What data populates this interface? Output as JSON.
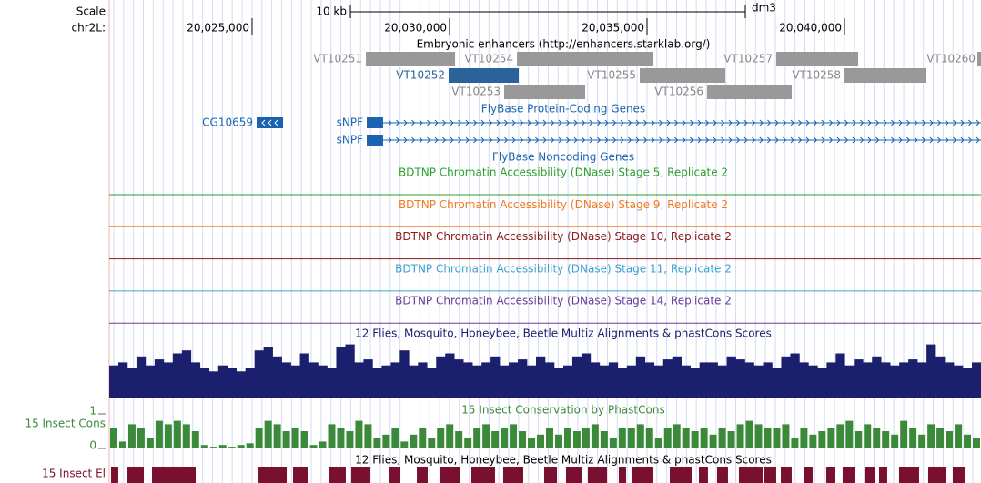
{
  "scale": {
    "label": "Scale",
    "bar_label": "10 kb",
    "bar_length": 10000,
    "assembly": "dm3"
  },
  "position": {
    "chrom_label": "chr2L:",
    "range": [
      20021383,
      20043456
    ],
    "ticks": [
      {
        "value": 20025000,
        "label": "20,025,000"
      },
      {
        "value": 20030000,
        "label": "20,030,000"
      },
      {
        "value": 20035000,
        "label": "20,035,000"
      },
      {
        "value": 20040000,
        "label": "20,040,000"
      }
    ]
  },
  "enhancers": {
    "title": "Embryonic enhancers (http://enhancers.starklab.org/)",
    "items": [
      {
        "name": "VT10251",
        "start": 20027881,
        "end": 20030139,
        "row": 1,
        "color": "#999999"
      },
      {
        "name": "VT10254",
        "start": 20031706,
        "end": 20035162,
        "row": 1,
        "color": "#999999"
      },
      {
        "name": "VT10257",
        "start": 20038272,
        "end": 20040346,
        "row": 1,
        "color": "#999999"
      },
      {
        "name": "VT10260",
        "start": 20043365,
        "end": 20043456,
        "row": 1,
        "color": "#999999"
      },
      {
        "name": "VT10252",
        "start": 20029977,
        "end": 20031752,
        "row": 2,
        "color": "#2a6299"
      },
      {
        "name": "VT10255",
        "start": 20034816,
        "end": 20036982,
        "row": 2,
        "color": "#999999"
      },
      {
        "name": "VT10258",
        "start": 20040001,
        "end": 20042074,
        "row": 2,
        "color": "#999999"
      },
      {
        "name": "VT10253",
        "start": 20031383,
        "end": 20033434,
        "row": 3,
        "color": "#999999"
      },
      {
        "name": "VT10256",
        "start": 20036521,
        "end": 20038664,
        "row": 3,
        "color": "#999999"
      }
    ]
  },
  "genes": {
    "title": "FlyBase Protein-Coding Genes",
    "color": "#1a63b0",
    "items": [
      {
        "name": "CG10659",
        "start": 20025116,
        "end": 20025784,
        "thick_end": 20025784,
        "row": 1
      },
      {
        "name": "sNPF",
        "start": 20027904,
        "end": 20043456,
        "thick_end": 20028317,
        "row": 1
      },
      {
        "name": "sNPF",
        "start": 20027904,
        "end": 20043456,
        "thick_end": 20028317,
        "row": 2
      }
    ]
  },
  "noncoding": {
    "title": "FlyBase Noncoding Genes"
  },
  "dnase": [
    {
      "title": "BDTNP Chromatin Accessibility (DNase) Stage 5, Replicate 2",
      "color": "#2ca02c"
    },
    {
      "title": "BDTNP Chromatin Accessibility (DNase) Stage 9, Replicate 2",
      "color": "#f07a20"
    },
    {
      "title": "BDTNP Chromatin Accessibility (DNase) Stage 10, Replicate 2",
      "color": "#8b1a1a"
    },
    {
      "title": "BDTNP Chromatin Accessibility (DNase) Stage 11, Replicate 2",
      "color": "#3ca0d0"
    },
    {
      "title": "BDTNP Chromatin Accessibility (DNase) Stage 14, Replicate 2",
      "color": "#6a3a9a"
    }
  ],
  "multiz": {
    "title": "12 Flies, Mosquito, Honeybee, Beetle Multiz Alignments & phastCons Scores",
    "color": "#1a1f6e",
    "values": [
      0.55,
      0.6,
      0.5,
      0.7,
      0.55,
      0.65,
      0.6,
      0.75,
      0.8,
      0.6,
      0.5,
      0.45,
      0.55,
      0.5,
      0.45,
      0.5,
      0.8,
      0.85,
      0.7,
      0.6,
      0.55,
      0.75,
      0.6,
      0.55,
      0.5,
      0.85,
      0.9,
      0.6,
      0.65,
      0.5,
      0.55,
      0.6,
      0.8,
      0.55,
      0.6,
      0.5,
      0.7,
      0.75,
      0.65,
      0.6,
      0.55,
      0.6,
      0.7,
      0.55,
      0.6,
      0.65,
      0.55,
      0.7,
      0.6,
      0.5,
      0.55,
      0.7,
      0.75,
      0.6,
      0.55,
      0.6,
      0.5,
      0.55,
      0.7,
      0.6,
      0.55,
      0.65,
      0.7,
      0.55,
      0.5,
      0.6,
      0.6,
      0.55,
      0.7,
      0.65,
      0.6,
      0.55,
      0.6,
      0.5,
      0.7,
      0.75,
      0.6,
      0.55,
      0.5,
      0.6,
      0.75,
      0.55,
      0.65,
      0.6,
      0.7,
      0.6,
      0.55,
      0.6,
      0.65,
      0.6,
      0.9,
      0.7,
      0.6,
      0.55,
      0.5,
      0.6
    ]
  },
  "phastcons": {
    "title": "15 Insect Conservation by PhastCons",
    "side_label": "15 Insect Cons",
    "color": "#3a8a3a",
    "ylim": [
      0,
      1
    ],
    "yticks": [
      0,
      1
    ],
    "values": [
      0.6,
      0.2,
      0.7,
      0.6,
      0.3,
      0.8,
      0.7,
      0.8,
      0.7,
      0.5,
      0.1,
      0.05,
      0.1,
      0.05,
      0.1,
      0.15,
      0.6,
      0.8,
      0.7,
      0.5,
      0.6,
      0.5,
      0.1,
      0.2,
      0.7,
      0.6,
      0.5,
      0.8,
      0.7,
      0.3,
      0.4,
      0.6,
      0.2,
      0.4,
      0.6,
      0.3,
      0.6,
      0.7,
      0.5,
      0.3,
      0.6,
      0.7,
      0.5,
      0.6,
      0.7,
      0.5,
      0.3,
      0.4,
      0.6,
      0.4,
      0.6,
      0.5,
      0.6,
      0.7,
      0.5,
      0.3,
      0.6,
      0.6,
      0.7,
      0.6,
      0.3,
      0.6,
      0.7,
      0.6,
      0.5,
      0.6,
      0.4,
      0.6,
      0.5,
      0.7,
      0.8,
      0.7,
      0.6,
      0.6,
      0.7,
      0.3,
      0.6,
      0.4,
      0.5,
      0.6,
      0.7,
      0.8,
      0.5,
      0.7,
      0.6,
      0.5,
      0.4,
      0.8,
      0.6,
      0.4,
      0.7,
      0.6,
      0.5,
      0.7,
      0.4,
      0.3
    ]
  },
  "elements": {
    "title": "12 Flies, Mosquito, Honeybee, Beetle Multiz Alignments & phastCons Scores",
    "side_label": "15 Insect El",
    "color": "#7a1030",
    "items": [
      [
        20021429,
        20021613
      ],
      [
        20021844,
        20022259
      ],
      [
        20022466,
        20023572
      ],
      [
        20025162,
        20025876
      ],
      [
        20026037,
        20026406
      ],
      [
        20026959,
        20027373
      ],
      [
        20027512,
        20027995
      ],
      [
        20028479,
        20028756
      ],
      [
        20029171,
        20029447
      ],
      [
        20029747,
        20030276
      ],
      [
        20030553,
        20031152
      ],
      [
        20031359,
        20031866
      ],
      [
        20032396,
        20032719
      ],
      [
        20032949,
        20033364
      ],
      [
        20033502,
        20033986
      ],
      [
        20034285,
        20034470
      ],
      [
        20034608,
        20035161
      ],
      [
        20035576,
        20036129
      ],
      [
        20036313,
        20036543
      ],
      [
        20036774,
        20037050
      ],
      [
        20037327,
        20037926
      ],
      [
        20037972,
        20038271
      ],
      [
        20038387,
        20038663
      ],
      [
        20038986,
        20039193
      ],
      [
        20039538,
        20039769
      ],
      [
        20039953,
        20040276
      ],
      [
        20040506,
        20040783
      ],
      [
        20040875,
        20041082
      ],
      [
        20041382,
        20041889
      ],
      [
        20042119,
        20042580
      ],
      [
        20042741,
        20043041
      ]
    ]
  }
}
